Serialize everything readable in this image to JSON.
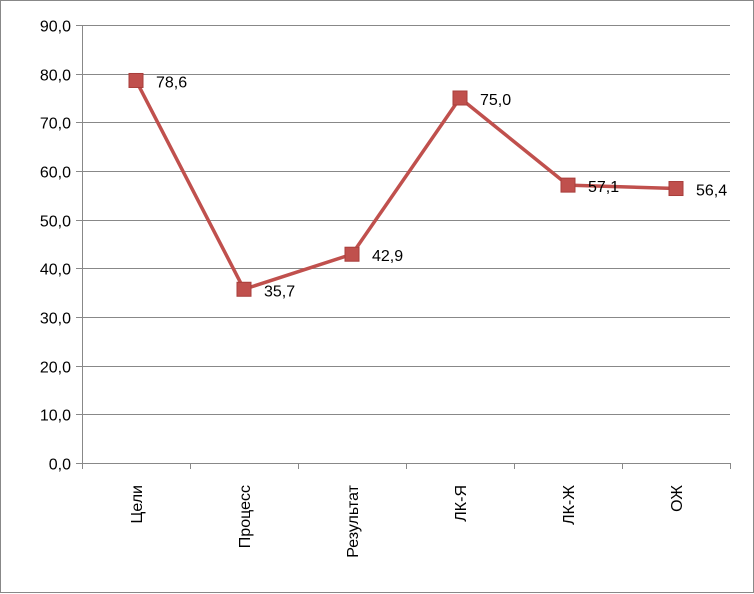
{
  "chart_data": {
    "type": "line",
    "categories": [
      "Цели",
      "Процесс",
      "Результат",
      "ЛК-Я",
      "ЛК-Ж",
      "ОЖ"
    ],
    "values": [
      78.6,
      35.7,
      42.9,
      75.0,
      57.1,
      56.4
    ],
    "value_labels": [
      "78,6",
      "35,7",
      "42,9",
      "75,0",
      "57,1",
      "56,4"
    ],
    "yticks": [
      0,
      10,
      20,
      30,
      40,
      50,
      60,
      70,
      80,
      90
    ],
    "ytick_labels": [
      "0,0",
      "10,0",
      "20,0",
      "30,0",
      "40,0",
      "50,0",
      "60,0",
      "70,0",
      "80,0",
      "90,0"
    ],
    "ylim": [
      0,
      90
    ],
    "title": "",
    "xlabel": "",
    "ylabel": "",
    "grid": "horizontal",
    "legend": "none",
    "line_color": "#c0504d",
    "marker": "square",
    "grid_color": "#888888"
  }
}
